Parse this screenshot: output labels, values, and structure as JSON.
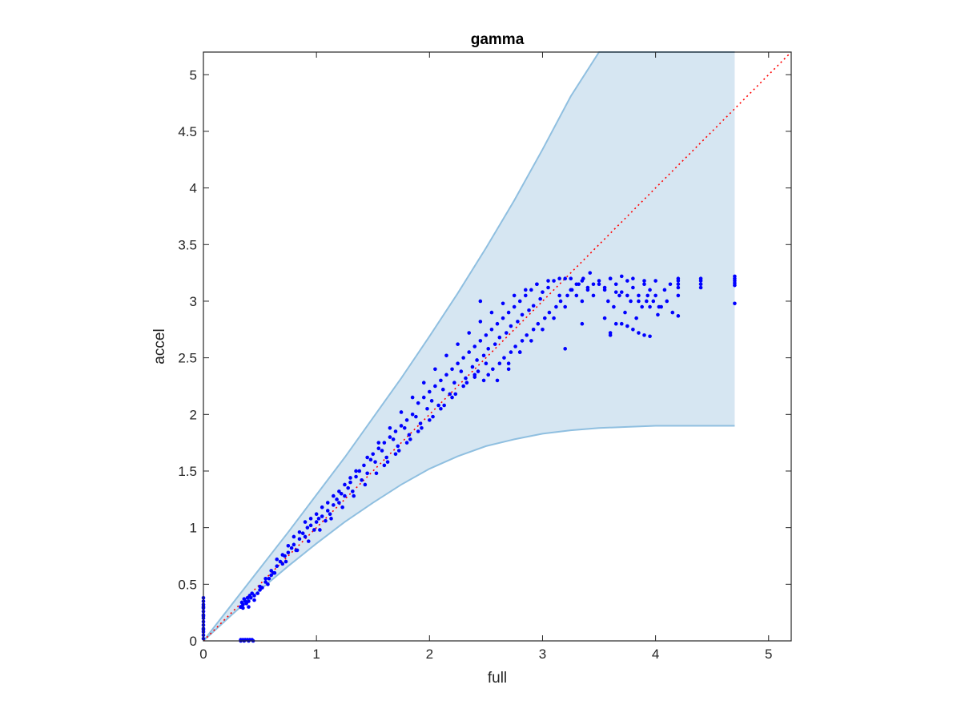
{
  "chart_data": {
    "type": "scatter",
    "title": "gamma",
    "xlabel": "full",
    "ylabel": "accel",
    "xlim": [
      0,
      5.2
    ],
    "ylim": [
      0,
      5.2
    ],
    "xticks": [
      "0",
      "1",
      "2",
      "3",
      "4",
      "5"
    ],
    "yticks": [
      "0",
      "0.5",
      "1",
      "1.5",
      "2",
      "2.5",
      "3",
      "3.5",
      "4",
      "4.5",
      "5"
    ],
    "xtick_values": [
      0,
      1,
      2,
      3,
      4,
      5
    ],
    "ytick_values": [
      0,
      0.5,
      1,
      1.5,
      2,
      2.5,
      3,
      3.5,
      4,
      4.5,
      5
    ],
    "grid": false,
    "colors": {
      "points": "#0000ff",
      "band_fill": "#d6e6f2",
      "band_edge": "#8fbfe0",
      "reference_line": "#ff0000",
      "axes": "#262626"
    },
    "reference_line": {
      "style": "dotted",
      "x": [
        0,
        5.2
      ],
      "y": [
        0,
        5.2
      ]
    },
    "band": {
      "x": [
        0,
        0.25,
        0.5,
        0.75,
        1.0,
        1.25,
        1.5,
        1.75,
        2.0,
        2.25,
        2.5,
        2.75,
        3.0,
        3.25,
        3.5,
        3.75,
        4.0,
        4.25,
        4.5,
        4.7
      ],
      "upper": [
        0,
        0.32,
        0.64,
        0.96,
        1.29,
        1.62,
        1.97,
        2.32,
        2.69,
        3.07,
        3.47,
        3.89,
        4.34,
        4.81,
        5.2,
        5.2,
        5.2,
        5.2,
        5.2,
        5.2
      ],
      "lower": [
        0,
        0.23,
        0.45,
        0.66,
        0.86,
        1.05,
        1.22,
        1.38,
        1.52,
        1.63,
        1.72,
        1.78,
        1.83,
        1.86,
        1.88,
        1.89,
        1.9,
        1.9,
        1.9,
        1.9
      ]
    },
    "points": {
      "x": [
        0,
        0,
        0,
        0,
        0,
        0,
        0,
        0,
        0,
        0,
        0,
        0,
        0,
        0,
        0,
        0,
        0.33,
        0.35,
        0.37,
        0.39,
        0.41,
        0.43,
        0.33,
        0.36,
        0.4,
        0.44,
        0.33,
        0.34,
        0.35,
        0.36,
        0.38,
        0.4,
        0.42,
        0.45,
        0.48,
        0.5,
        0.52,
        0.55,
        0.57,
        0.6,
        0.62,
        0.65,
        0.68,
        0.7,
        0.72,
        0.75,
        0.78,
        0.8,
        0.82,
        0.85,
        0.88,
        0.9,
        0.92,
        0.95,
        0.98,
        1.0,
        1.02,
        1.05,
        1.08,
        1.1,
        1.12,
        1.15,
        1.18,
        1.2,
        1.22,
        1.25,
        1.28,
        1.3,
        1.32,
        1.35,
        1.38,
        1.4,
        1.42,
        1.45,
        1.48,
        1.5,
        1.52,
        1.55,
        1.58,
        1.6,
        1.62,
        1.65,
        1.68,
        1.7,
        1.72,
        1.75,
        1.78,
        1.8,
        1.82,
        1.85,
        1.88,
        1.9,
        1.92,
        1.95,
        1.98,
        2.0,
        2.02,
        2.05,
        2.08,
        2.1,
        2.12,
        2.15,
        2.18,
        2.2,
        2.22,
        2.25,
        2.28,
        2.3,
        2.32,
        2.35,
        2.38,
        2.4,
        2.42,
        2.45,
        2.48,
        2.5,
        2.52,
        2.55,
        2.58,
        2.6,
        2.62,
        2.65,
        2.68,
        2.7,
        2.72,
        2.75,
        2.78,
        2.8,
        2.82,
        2.85,
        2.88,
        2.9,
        2.92,
        2.95,
        2.98,
        3.0,
        3.05,
        3.1,
        3.15,
        3.2,
        3.25,
        3.3,
        3.35,
        3.4,
        3.45,
        3.5,
        3.55,
        3.6,
        3.65,
        3.7,
        3.75,
        3.8,
        3.85,
        3.9,
        3.95,
        4.0,
        0.4,
        0.45,
        0.5,
        0.55,
        0.6,
        0.65,
        0.7,
        0.75,
        0.8,
        0.85,
        0.9,
        0.95,
        1.0,
        1.05,
        1.1,
        1.15,
        1.2,
        1.25,
        1.3,
        1.35,
        1.45,
        1.55,
        1.65,
        1.75,
        1.85,
        1.95,
        2.05,
        2.15,
        2.25,
        2.35,
        2.45,
        2.55,
        2.65,
        2.75,
        2.85,
        2.95,
        3.05,
        3.15,
        3.25,
        3.35,
        3.45,
        3.55,
        3.65,
        3.75,
        3.85,
        3.95,
        2.6,
        2.7,
        2.8,
        2.9,
        3.0,
        3.1,
        3.2,
        3.3,
        3.4,
        3.5,
        3.6,
        3.7,
        3.8,
        3.9,
        1.9,
        2.0,
        2.1,
        2.2,
        2.3,
        2.4,
        2.5,
        1.6,
        1.7,
        1.8,
        0.58,
        0.63,
        0.73,
        0.83,
        0.93,
        1.03,
        1.13,
        1.23,
        1.33,
        1.43,
        1.53,
        1.63,
        1.73,
        1.83,
        1.93,
        2.03,
        2.13,
        2.23,
        2.33,
        2.43,
        3.58,
        3.63,
        3.68,
        3.73,
        3.78,
        3.83,
        3.88,
        3.93,
        3.98,
        4.03,
        4.08,
        4.13,
        4.2,
        4.2,
        4.2,
        4.2,
        4.2,
        4.4,
        4.4,
        4.4,
        4.4,
        4.7,
        4.7,
        4.7,
        4.7,
        4.7,
        3.55,
        3.6,
        3.7,
        3.8,
        3.9,
        4.0,
        4.05,
        4.1,
        4.15,
        3.65,
        3.75,
        3.85,
        3.95,
        4.02,
        2.48,
        2.52,
        2.56,
        2.62,
        2.66,
        2.72,
        2.76,
        2.82,
        2.86,
        2.92,
        2.96,
        3.02,
        3.06,
        3.12,
        3.16,
        3.22,
        3.26,
        3.32,
        3.36,
        3.42,
        2.7,
        2.8,
        3.6,
        3.92,
        4.2,
        4.7,
        2.45,
        3.35,
        3.2,
        2.4,
        0.33,
        0.35,
        0.37,
        0.39,
        0.41,
        0.43
      ],
      "y": [
        0.02,
        0.05,
        0.08,
        0.11,
        0.14,
        0.17,
        0.2,
        0.23,
        0.26,
        0.29,
        0.32,
        0.35,
        0.38,
        0.1,
        0.22,
        0.3,
        0.01,
        0.01,
        0.01,
        0.01,
        0.01,
        0.01,
        0.0,
        0.0,
        0.0,
        0.0,
        0.3,
        0.34,
        0.29,
        0.37,
        0.33,
        0.3,
        0.38,
        0.36,
        0.42,
        0.45,
        0.47,
        0.52,
        0.5,
        0.58,
        0.6,
        0.66,
        0.7,
        0.68,
        0.75,
        0.78,
        0.82,
        0.85,
        0.8,
        0.9,
        0.95,
        0.92,
        1.0,
        1.02,
        0.98,
        1.05,
        1.08,
        1.1,
        1.06,
        1.15,
        1.12,
        1.2,
        1.25,
        1.22,
        1.3,
        1.28,
        1.35,
        1.4,
        1.32,
        1.45,
        1.5,
        1.42,
        1.55,
        1.48,
        1.6,
        1.65,
        1.58,
        1.7,
        1.68,
        1.75,
        1.62,
        1.8,
        1.78,
        1.85,
        1.72,
        1.9,
        1.88,
        1.95,
        1.82,
        2.0,
        1.98,
        2.1,
        1.92,
        2.15,
        2.05,
        2.2,
        2.12,
        2.25,
        2.08,
        2.3,
        2.22,
        2.35,
        2.18,
        2.4,
        2.28,
        2.45,
        2.38,
        2.5,
        2.32,
        2.55,
        2.42,
        2.6,
        2.48,
        2.65,
        2.52,
        2.7,
        2.58,
        2.75,
        2.62,
        2.8,
        2.68,
        2.85,
        2.72,
        2.9,
        2.78,
        2.95,
        2.82,
        3.0,
        2.88,
        3.05,
        2.92,
        3.1,
        2.96,
        3.15,
        3.02,
        3.08,
        3.12,
        3.18,
        3.05,
        3.2,
        3.1,
        3.15,
        3.0,
        3.12,
        3.05,
        3.18,
        3.1,
        3.2,
        3.15,
        3.08,
        3.18,
        3.12,
        3.05,
        3.15,
        3.1,
        3.18,
        0.35,
        0.4,
        0.48,
        0.55,
        0.62,
        0.72,
        0.76,
        0.84,
        0.92,
        0.96,
        1.05,
        1.08,
        1.12,
        1.18,
        1.22,
        1.28,
        1.32,
        1.38,
        1.44,
        1.5,
        1.62,
        1.75,
        1.88,
        2.02,
        2.15,
        2.28,
        2.4,
        2.52,
        2.62,
        2.72,
        2.82,
        2.9,
        2.98,
        3.05,
        3.1,
        3.15,
        3.18,
        3.2,
        3.2,
        3.18,
        3.15,
        3.12,
        3.08,
        3.05,
        3.0,
        2.95,
        2.3,
        2.4,
        2.55,
        2.65,
        2.75,
        2.85,
        2.95,
        3.05,
        3.1,
        3.15,
        3.2,
        3.22,
        3.2,
        3.18,
        1.85,
        1.95,
        2.05,
        2.15,
        2.25,
        2.35,
        2.45,
        1.55,
        1.65,
        1.75,
        0.55,
        0.6,
        0.7,
        0.8,
        0.88,
        0.98,
        1.08,
        1.18,
        1.28,
        1.38,
        1.48,
        1.58,
        1.68,
        1.78,
        1.88,
        1.98,
        2.08,
        2.18,
        2.28,
        2.38,
        3.0,
        2.95,
        3.05,
        2.9,
        3.0,
        2.85,
        2.95,
        3.05,
        3.0,
        2.95,
        3.1,
        3.15,
        3.2,
        3.18,
        3.15,
        3.12,
        2.87,
        3.2,
        3.18,
        3.15,
        3.12,
        3.2,
        3.18,
        3.16,
        3.14,
        2.98,
        2.85,
        2.72,
        2.8,
        2.75,
        2.7,
        3.05,
        2.95,
        3.0,
        2.9,
        2.8,
        2.78,
        2.72,
        2.69,
        2.88,
        2.3,
        2.35,
        2.4,
        2.45,
        2.5,
        2.55,
        2.6,
        2.65,
        2.7,
        2.75,
        2.8,
        2.85,
        2.9,
        2.95,
        3.0,
        3.05,
        3.1,
        3.15,
        3.2,
        3.25,
        2.45,
        2.55,
        2.7,
        3.0,
        3.05,
        3.22,
        3.0,
        2.8,
        2.58,
        2.33,
        0.3,
        0.32,
        0.35,
        0.38,
        0.4,
        0.42
      ]
    }
  }
}
